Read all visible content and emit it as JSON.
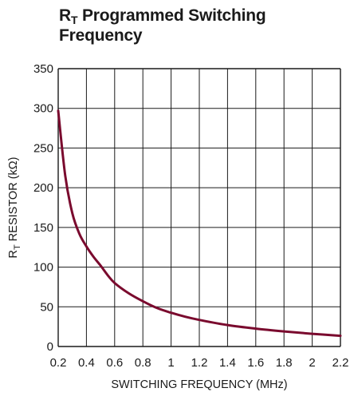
{
  "title": {
    "main_prefix": "R",
    "main_subscript": "T",
    "main_rest": " Programmed Switching",
    "line2": "Frequency"
  },
  "colors": {
    "curve": "#7a0a2e",
    "grid": "#1a1a1a",
    "text": "#1a1a1a"
  },
  "chart_data": {
    "type": "line",
    "title": "RT Programmed Switching Frequency",
    "xlabel": "SWITCHING FREQUENCY (MHz)",
    "ylabel_prefix": "R",
    "ylabel_subscript": "T",
    "ylabel_rest": " RESISTOR (kΩ)",
    "xlim": [
      0.2,
      2.2
    ],
    "ylim": [
      0,
      350
    ],
    "xticks": [
      "0.2",
      "0.4",
      "0.6",
      "0.8",
      "1",
      "1.2",
      "1.4",
      "1.6",
      "1.8",
      "2",
      "2.2"
    ],
    "yticks": [
      "0",
      "50",
      "100",
      "150",
      "200",
      "250",
      "300",
      "350"
    ],
    "grid": true,
    "series": [
      {
        "x": [
          0.2,
          0.25,
          0.3,
          0.35,
          0.4,
          0.45,
          0.5,
          0.55,
          0.6,
          0.7,
          0.8,
          0.9,
          1.0,
          1.1,
          1.2,
          1.4,
          1.6,
          1.8,
          2.0,
          2.2
        ],
        "y": [
          297,
          215,
          168,
          142,
          126,
          113,
          102,
          90,
          80,
          67,
          57,
          48.5,
          42.5,
          37.5,
          33.5,
          27,
          22.5,
          19,
          16,
          13.5
        ]
      }
    ]
  }
}
